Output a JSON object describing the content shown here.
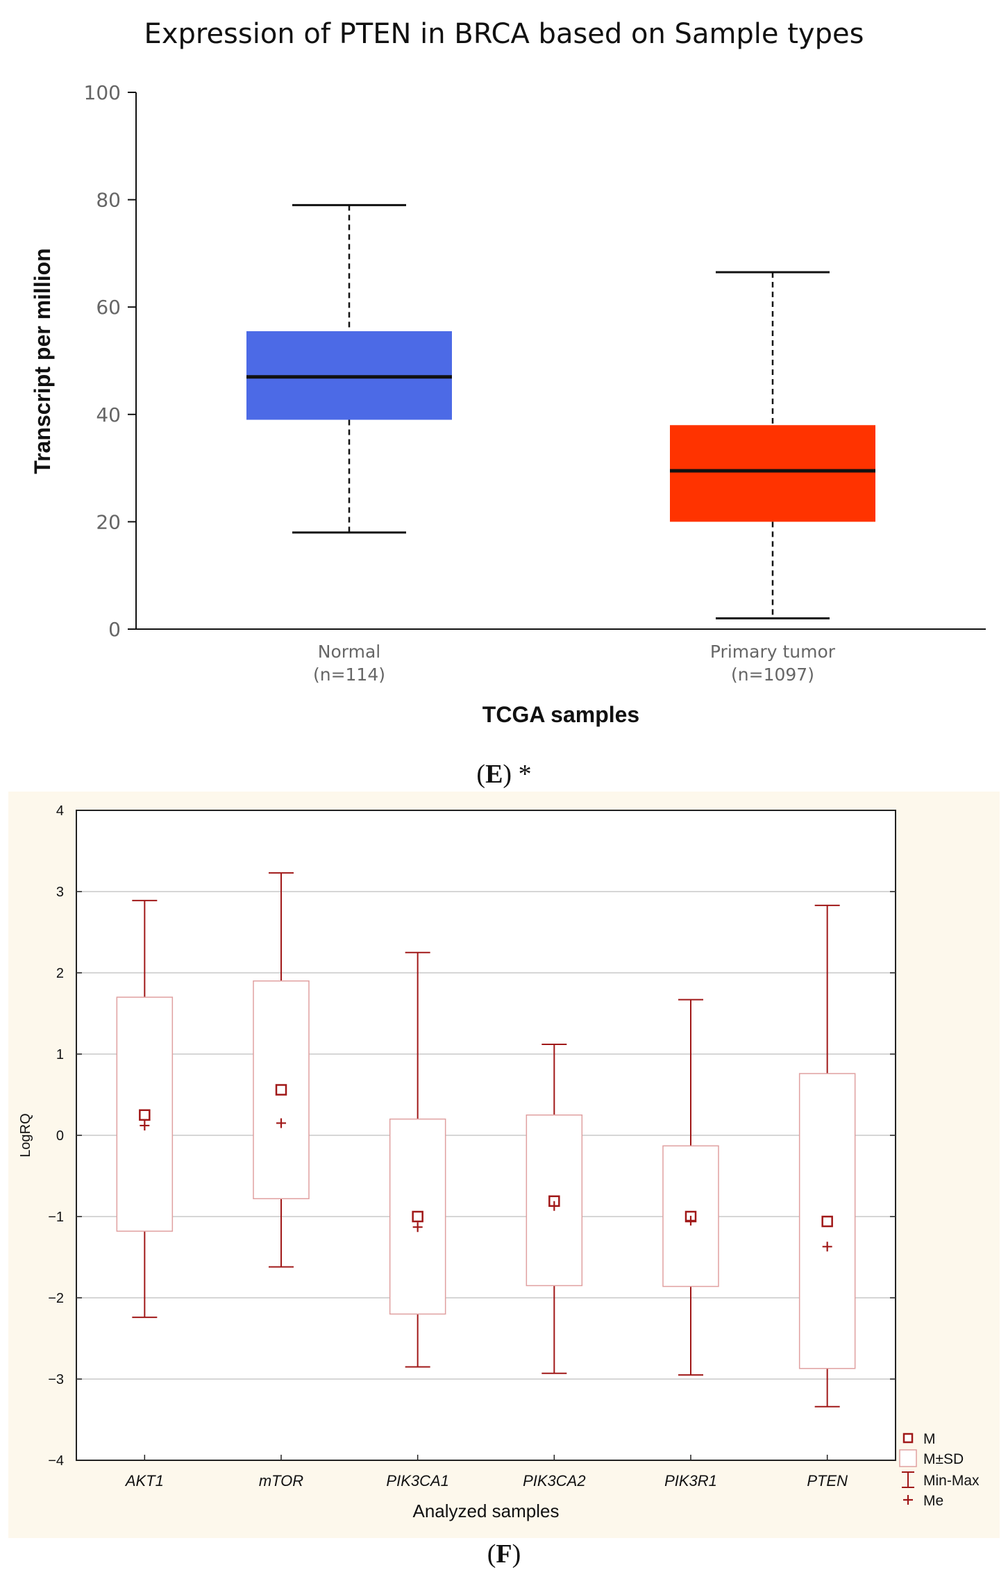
{
  "chart_data": [
    {
      "type": "box",
      "title": "Expression of PTEN in BRCA based on Sample types",
      "xlabel": "TCGA samples",
      "ylabel": "Transcript per million",
      "ylim": [
        0,
        100
      ],
      "yticks": [
        0,
        20,
        40,
        60,
        80,
        100
      ],
      "grid": false,
      "categories": [
        {
          "label": "Normal",
          "n_label": "(n=114)",
          "color": "#4c6ae6",
          "min": 18,
          "q1": 39,
          "median": 47,
          "q3": 55.5,
          "max": 79
        },
        {
          "label": "Primary tumor",
          "n_label": "(n=1097)",
          "color": "#ff3300",
          "min": 2,
          "q1": 20,
          "median": 29.5,
          "q3": 38,
          "max": 66.5
        }
      ],
      "caption": {
        "letter": "E",
        "suffix": " *",
        "open": "(",
        "close": ")"
      }
    },
    {
      "type": "box",
      "title": "",
      "xlabel": "Analyzed samples",
      "ylabel": "LogRQ",
      "ylim": [
        -4,
        4
      ],
      "yticks": [
        -4,
        -3,
        -2,
        -1,
        0,
        1,
        2,
        3,
        4
      ],
      "grid": true,
      "background": "#fdf8ec",
      "accent": "#a01818",
      "categories": [
        {
          "label": "AKT1",
          "mean": 0.25,
          "sd_low": -1.18,
          "sd_high": 1.7,
          "min": -2.24,
          "max": 2.89,
          "median": 0.12
        },
        {
          "label": "mTOR",
          "mean": 0.56,
          "sd_low": -0.78,
          "sd_high": 1.9,
          "min": -1.62,
          "max": 3.23,
          "median": 0.15
        },
        {
          "label": "PIK3CA1",
          "mean": -1.0,
          "sd_low": -2.2,
          "sd_high": 0.2,
          "min": -2.85,
          "max": 2.25,
          "median": -1.13
        },
        {
          "label": "PIK3CA2",
          "mean": -0.81,
          "sd_low": -1.85,
          "sd_high": 0.25,
          "min": -2.93,
          "max": 1.12,
          "median": -0.87
        },
        {
          "label": "PIK3R1",
          "mean": -1.0,
          "sd_low": -1.86,
          "sd_high": -0.13,
          "min": -2.95,
          "max": 1.67,
          "median": -1.05
        },
        {
          "label": "PTEN",
          "mean": -1.06,
          "sd_low": -2.87,
          "sd_high": 0.76,
          "min": -3.34,
          "max": 2.83,
          "median": -1.37
        }
      ],
      "legend": [
        {
          "symbol": "square",
          "label": "M"
        },
        {
          "symbol": "box",
          "label": "M±SD"
        },
        {
          "symbol": "whisker",
          "label": "Min-Max"
        },
        {
          "symbol": "plus",
          "label": "Me"
        }
      ],
      "legend_position": "bottom-right",
      "caption": {
        "letter": "F",
        "suffix": "",
        "open": "(",
        "close": ")"
      }
    }
  ]
}
